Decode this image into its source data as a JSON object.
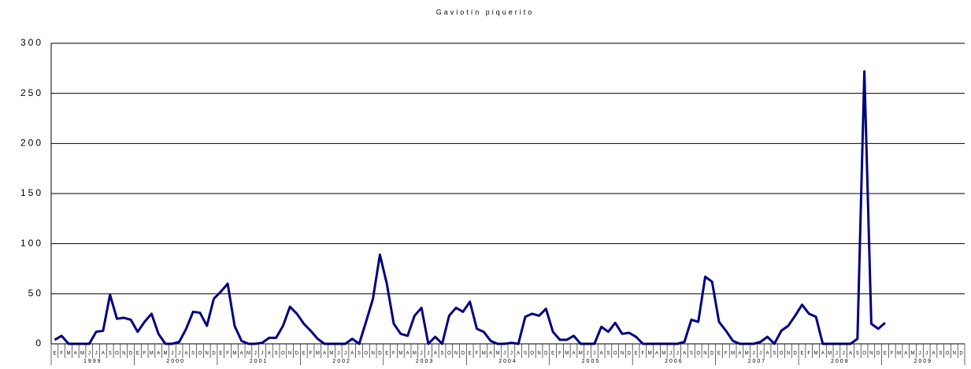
{
  "chart_data": {
    "type": "line",
    "title": "Gaviotín piquerito",
    "categories": [
      "E",
      "F",
      "M",
      "A",
      "M",
      "J",
      "J",
      "A",
      "S",
      "O",
      "N",
      "D",
      "E",
      "F",
      "M",
      "A",
      "M",
      "J",
      "J",
      "A",
      "S",
      "O",
      "N",
      "D",
      "E",
      "F",
      "M",
      "A",
      "M",
      "J",
      "J",
      "A",
      "S",
      "O",
      "N",
      "D",
      "E",
      "F",
      "M",
      "A",
      "M",
      "J",
      "J",
      "A",
      "S",
      "O",
      "N",
      "D",
      "E",
      "F",
      "M",
      "A",
      "M",
      "J",
      "J",
      "A",
      "S",
      "O",
      "N",
      "D",
      "E",
      "F",
      "M",
      "A",
      "M",
      "J",
      "J",
      "A",
      "S",
      "O",
      "N",
      "D",
      "E",
      "F",
      "M",
      "A",
      "M",
      "J",
      "J",
      "A",
      "S",
      "O",
      "N",
      "D",
      "E",
      "F",
      "M",
      "A",
      "M",
      "J",
      "J",
      "A",
      "S",
      "O",
      "N",
      "D",
      "E",
      "F",
      "M",
      "A",
      "M",
      "J",
      "J",
      "A",
      "S",
      "O",
      "N",
      "D",
      "E",
      "F",
      "M",
      "A",
      "M",
      "J",
      "J",
      "A",
      "S",
      "O",
      "N",
      "D",
      "E",
      "F",
      "M",
      "A",
      "M",
      "J",
      "J",
      "A",
      "S",
      "O",
      "N",
      "D"
    ],
    "years": [
      "1999",
      "2000",
      "2001",
      "2002",
      "2003",
      "2004",
      "2005",
      "2006",
      "2007",
      "2008",
      "2009"
    ],
    "series": [
      {
        "color": "#000080",
        "values": [
          4,
          8,
          0,
          0,
          0,
          0,
          12,
          13,
          49,
          25,
          26,
          24,
          12,
          22,
          30,
          10,
          0,
          0,
          2,
          15,
          32,
          31,
          18,
          45,
          52,
          60,
          18,
          3,
          0,
          0,
          1,
          6,
          6,
          18,
          37,
          30,
          20,
          13,
          5,
          0,
          0,
          0,
          0,
          5,
          0,
          22,
          45,
          89,
          60,
          20,
          10,
          8,
          28,
          36,
          0,
          7,
          0,
          28,
          36,
          32,
          42,
          15,
          12,
          3,
          0,
          0,
          1,
          0,
          27,
          30,
          28,
          35,
          12,
          4,
          4,
          8,
          0,
          0,
          0,
          17,
          12,
          21,
          10,
          11,
          7,
          0,
          0,
          0,
          0,
          0,
          0,
          2,
          24,
          22,
          67,
          62,
          22,
          13,
          3,
          0,
          0,
          0,
          2,
          7,
          0,
          13,
          18,
          28,
          39,
          30,
          27,
          0,
          0,
          0,
          0,
          0,
          5,
          272,
          20,
          15,
          21,
          null,
          null,
          null,
          null,
          null,
          null,
          null,
          null,
          null,
          null,
          null
        ]
      }
    ],
    "ylim": [
      0,
      300
    ],
    "yticks": [
      0,
      50,
      100,
      150,
      200,
      250,
      300
    ],
    "grid": true
  }
}
